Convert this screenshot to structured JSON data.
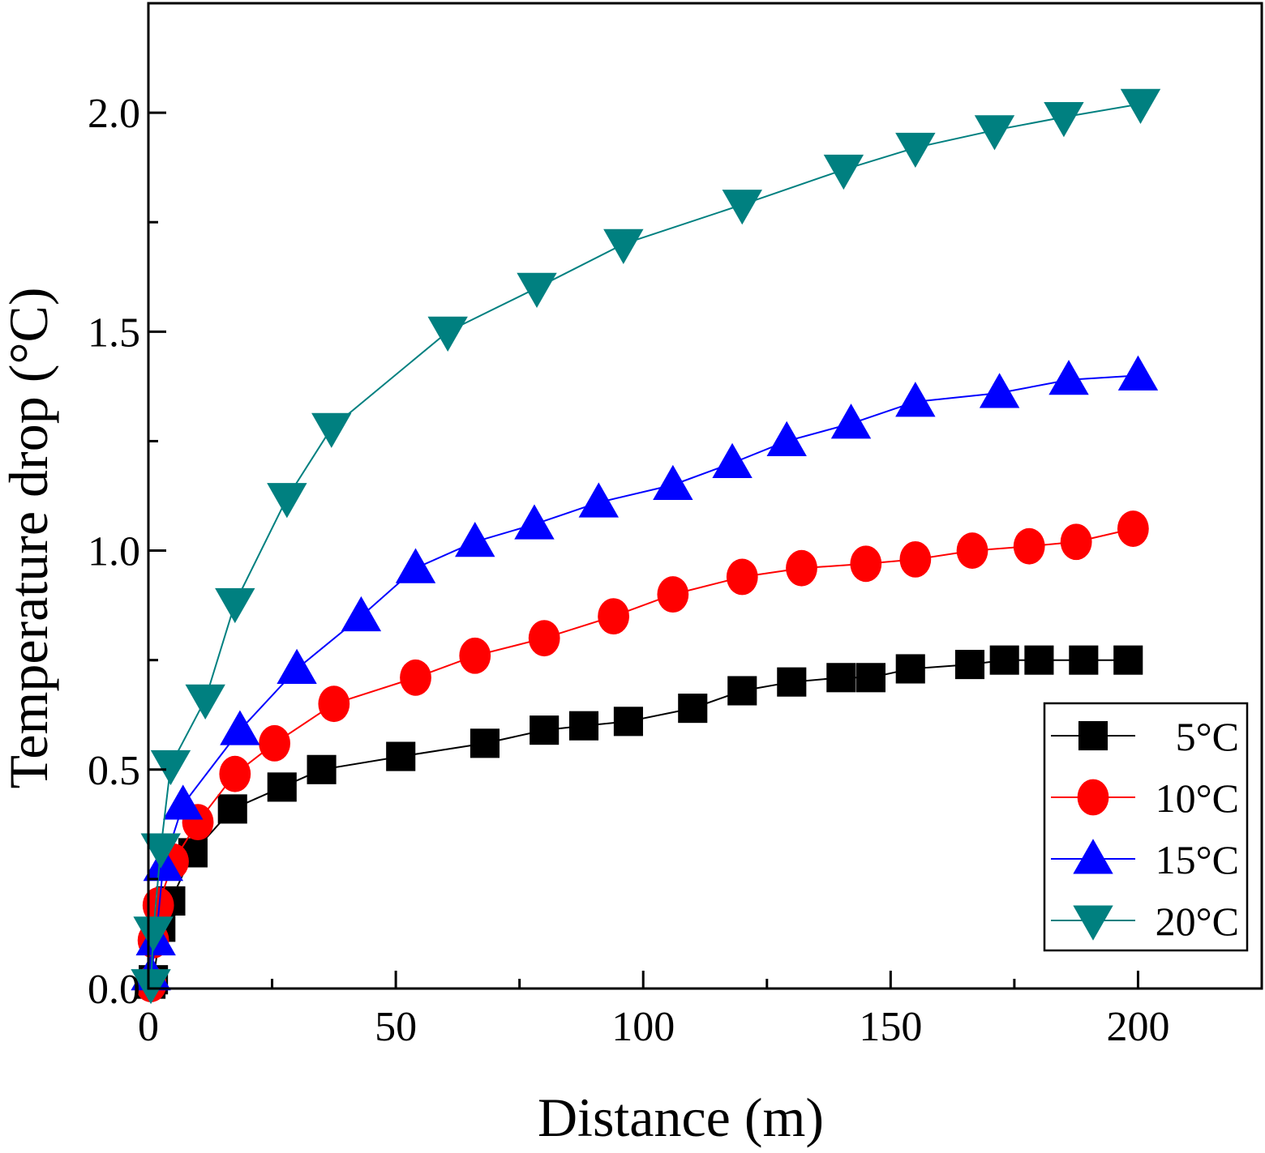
{
  "chart_data": {
    "type": "line",
    "title": "",
    "xlabel": "Distance (m)",
    "ylabel": "Temperature drop (°C)",
    "xlim": [
      0,
      225
    ],
    "ylim": [
      0,
      2.25
    ],
    "x_ticks": [
      0,
      50,
      100,
      150,
      200
    ],
    "x_tick_labels": [
      "0",
      "50",
      "100",
      "150",
      "200"
    ],
    "y_ticks": [
      0,
      0.5,
      1.0,
      1.5,
      2.0
    ],
    "y_tick_labels": [
      "0.0",
      "0.5",
      "1.0",
      "1.5",
      "2.0"
    ],
    "grid": false,
    "legend_position": "bottom-right",
    "series": [
      {
        "name": "5°C",
        "color": "#000000",
        "marker": "square",
        "x": [
          0.5,
          1,
          2.5,
          4.5,
          9,
          17,
          27,
          35,
          51,
          68,
          80,
          88,
          97,
          110,
          120,
          130,
          140,
          146,
          154,
          166,
          173,
          180,
          189,
          198
        ],
        "y": [
          0.01,
          0.02,
          0.14,
          0.2,
          0.31,
          0.41,
          0.46,
          0.5,
          0.53,
          0.56,
          0.59,
          0.6,
          0.61,
          0.64,
          0.68,
          0.7,
          0.71,
          0.71,
          0.73,
          0.74,
          0.75,
          0.75,
          0.75,
          0.75
        ]
      },
      {
        "name": "10°C",
        "color": "#ff0000",
        "marker": "circle",
        "x": [
          0.5,
          1,
          2,
          5,
          10,
          17.5,
          25.5,
          37.5,
          54,
          66,
          80,
          94,
          106,
          120,
          132,
          145,
          155,
          166.5,
          178,
          187.5,
          199
        ],
        "y": [
          0.01,
          0.11,
          0.19,
          0.29,
          0.38,
          0.49,
          0.56,
          0.65,
          0.71,
          0.76,
          0.8,
          0.85,
          0.9,
          0.94,
          0.96,
          0.97,
          0.98,
          1.0,
          1.01,
          1.02,
          1.05
        ]
      },
      {
        "name": "15°C",
        "color": "#0000ff",
        "marker": "triangle-up",
        "x": [
          0.5,
          1.5,
          3,
          7,
          18.5,
          30,
          43,
          54,
          66,
          78,
          91,
          106,
          118,
          129,
          142,
          155,
          172,
          186,
          200
        ],
        "y": [
          0.03,
          0.11,
          0.28,
          0.42,
          0.59,
          0.73,
          0.85,
          0.96,
          1.02,
          1.06,
          1.11,
          1.15,
          1.2,
          1.25,
          1.29,
          1.34,
          1.36,
          1.39,
          1.4
        ]
      },
      {
        "name": "20°C",
        "color": "#008080",
        "marker": "triangle-down",
        "x": [
          0.5,
          1,
          2.5,
          4.5,
          11.5,
          17.5,
          28,
          37,
          60.5,
          78.5,
          96,
          120,
          140.5,
          155,
          171,
          185,
          200.5
        ],
        "y": [
          0.01,
          0.13,
          0.32,
          0.51,
          0.66,
          0.88,
          1.12,
          1.28,
          1.5,
          1.6,
          1.7,
          1.79,
          1.87,
          1.92,
          1.96,
          1.99,
          2.02
        ]
      }
    ]
  }
}
